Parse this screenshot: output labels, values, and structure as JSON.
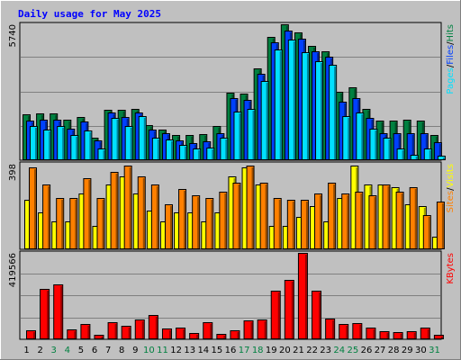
{
  "title": "Daily usage for May 2025",
  "colors": {
    "background": "#c0c0c0",
    "title": "#0000ff",
    "hits": "#008040",
    "files": "#0040ff",
    "pages": "#00e0ff",
    "visits": "#ffff00",
    "sites": "#ff8000",
    "kbytes": "#ff0000",
    "weekend_day_label": "#008040",
    "weekday_label": "#000000"
  },
  "chart_data": [
    {
      "type": "bar",
      "name": "hits-files-pages",
      "max_label": "5740",
      "ylim": [
        0,
        5740
      ],
      "right_labels": [
        "Pages",
        "Files",
        "Hits"
      ],
      "categories": [
        "1",
        "2",
        "3",
        "4",
        "5",
        "6",
        "7",
        "8",
        "9",
        "10",
        "11",
        "12",
        "13",
        "14",
        "15",
        "16",
        "17",
        "18",
        "19",
        "20",
        "21",
        "22",
        "23",
        "24",
        "25",
        "26",
        "27",
        "28",
        "29",
        "30",
        "31"
      ],
      "series": [
        {
          "name": "Hits",
          "values": [
            1950,
            1990,
            1990,
            1710,
            1830,
            950,
            2120,
            2110,
            2160,
            1470,
            1300,
            1060,
            1070,
            1090,
            1460,
            2860,
            2820,
            3880,
            5210,
            5740,
            5400,
            4840,
            4590,
            2870,
            3070,
            2150,
            1670,
            1690,
            1710,
            1670,
            1060
          ]
        },
        {
          "name": "Files",
          "values": [
            1680,
            1720,
            1720,
            1330,
            1650,
            850,
            2010,
            1820,
            2010,
            1300,
            1140,
            850,
            720,
            800,
            1140,
            2620,
            2560,
            3650,
            4990,
            5460,
            5150,
            4590,
            4370,
            2480,
            2640,
            1770,
            1130,
            1130,
            1130,
            1130,
            760
          ]
        },
        {
          "name": "Pages",
          "values": [
            1450,
            1280,
            1450,
            1060,
            1250,
            500,
            1800,
            1450,
            1850,
            950,
            880,
            640,
            480,
            520,
            940,
            2060,
            2160,
            3330,
            4680,
            5080,
            4580,
            4180,
            4040,
            1880,
            2030,
            1340,
            950,
            480,
            240,
            480,
            200
          ]
        }
      ]
    },
    {
      "type": "bar",
      "name": "visits-sites",
      "max_label": "398",
      "ylim": [
        0,
        398
      ],
      "right_labels": [
        "Sites",
        "Visits"
      ],
      "categories": [
        "1",
        "2",
        "3",
        "4",
        "5",
        "6",
        "7",
        "8",
        "9",
        "10",
        "11",
        "12",
        "13",
        "14",
        "15",
        "16",
        "17",
        "18",
        "19",
        "20",
        "21",
        "22",
        "23",
        "24",
        "25",
        "26",
        "27",
        "28",
        "29",
        "30",
        "31"
      ],
      "series": [
        {
          "name": "Visits",
          "values": [
            230,
            170,
            130,
            130,
            260,
            110,
            300,
            340,
            260,
            180,
            130,
            170,
            170,
            130,
            170,
            340,
            380,
            300,
            110,
            110,
            150,
            200,
            130,
            240,
            390,
            300,
            300,
            290,
            210,
            200,
            60
          ]
        },
        {
          "name": "Sites",
          "values": [
            380,
            300,
            240,
            240,
            330,
            240,
            360,
            390,
            340,
            300,
            210,
            280,
            250,
            240,
            270,
            310,
            390,
            310,
            240,
            230,
            230,
            260,
            310,
            260,
            270,
            250,
            300,
            270,
            290,
            160,
            220
          ]
        }
      ]
    },
    {
      "type": "bar",
      "name": "kbytes",
      "max_label": "419566",
      "ylim": [
        0,
        419566
      ],
      "right_labels": [
        "KBytes"
      ],
      "categories": [
        "1",
        "2",
        "3",
        "4",
        "5",
        "6",
        "7",
        "8",
        "9",
        "10",
        "11",
        "12",
        "13",
        "14",
        "15",
        "16",
        "17",
        "18",
        "19",
        "20",
        "21",
        "22",
        "23",
        "24",
        "25",
        "26",
        "27",
        "28",
        "29",
        "30",
        "31"
      ],
      "series": [
        {
          "name": "KBytes",
          "values": [
            44000,
            245000,
            268000,
            50000,
            75000,
            23000,
            85000,
            65000,
            95000,
            117000,
            54000,
            56000,
            31000,
            85000,
            25000,
            45000,
            90000,
            98000,
            237000,
            290000,
            419566,
            235000,
            102000,
            75000,
            80000,
            55000,
            40000,
            36000,
            40000,
            55000,
            20000
          ]
        }
      ]
    }
  ],
  "day_labels": [
    "1",
    "2",
    "3",
    "4",
    "5",
    "6",
    "7",
    "8",
    "9",
    "10",
    "11",
    "12",
    "13",
    "14",
    "15",
    "16",
    "17",
    "18",
    "19",
    "20",
    "21",
    "22",
    "23",
    "24",
    "25",
    "26",
    "27",
    "28",
    "29",
    "30",
    "31"
  ],
  "weekend_days": [
    "3",
    "4",
    "10",
    "11",
    "17",
    "18",
    "24",
    "25",
    "31"
  ]
}
